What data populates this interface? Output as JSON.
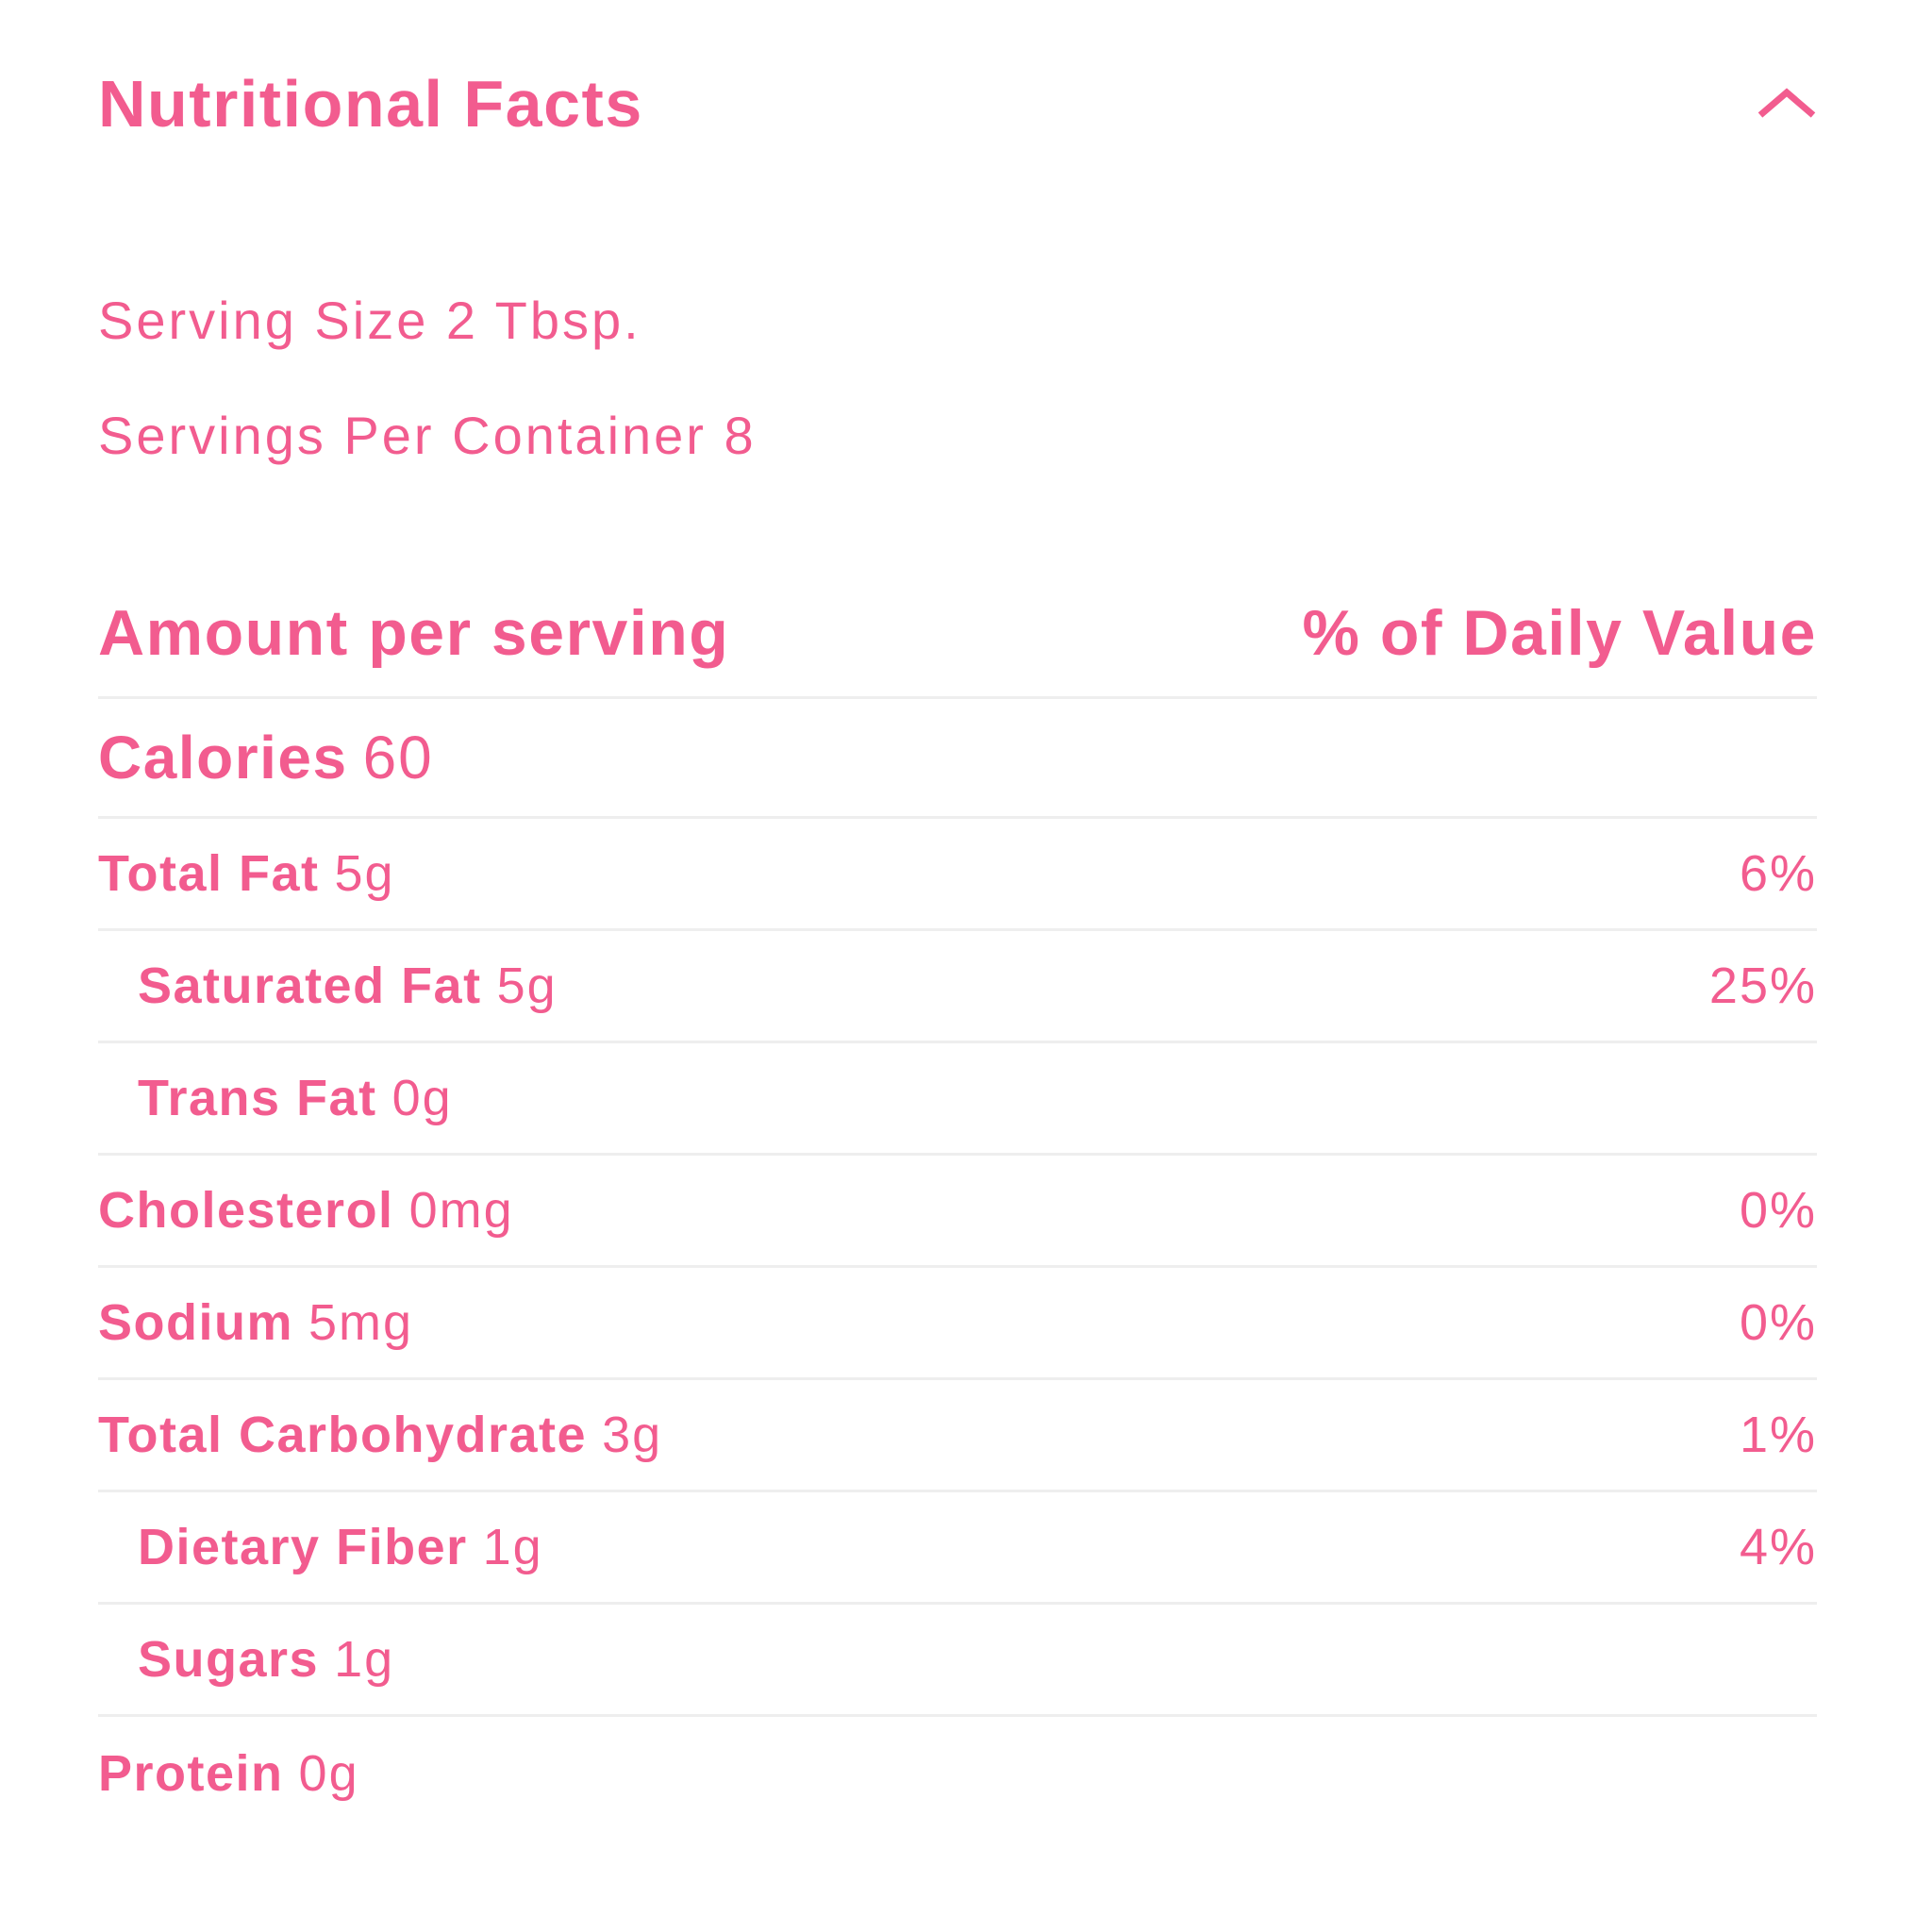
{
  "colors": {
    "accent": "#F25C8F",
    "divider": "#EEEEEE",
    "background": "#FFFFFF"
  },
  "accordion": {
    "title": "Nutritional Facts",
    "toggle_icon": "chevron-up-icon"
  },
  "serving_info": {
    "serving_size": "Serving Size 2 Tbsp.",
    "servings_per_container": "Servings Per Container 8"
  },
  "table": {
    "header": {
      "amount": "Amount per serving",
      "daily_value": "% of Daily Value"
    },
    "calories": {
      "label": "Calories",
      "value": "60"
    },
    "nutrients": [
      {
        "label": "Total Fat",
        "value": "5g",
        "daily_value": "6%",
        "indent": false
      },
      {
        "label": "Saturated Fat",
        "value": "5g",
        "daily_value": "25%",
        "indent": true
      },
      {
        "label": "Trans Fat",
        "value": "0g",
        "daily_value": "",
        "indent": true
      },
      {
        "label": "Cholesterol",
        "value": "0mg",
        "daily_value": "0%",
        "indent": false
      },
      {
        "label": "Sodium",
        "value": "5mg",
        "daily_value": "0%",
        "indent": false
      },
      {
        "label": "Total Carbohydrate",
        "value": "3g",
        "daily_value": "1%",
        "indent": false
      },
      {
        "label": "Dietary Fiber",
        "value": "1g",
        "daily_value": "4%",
        "indent": true
      },
      {
        "label": "Sugars",
        "value": "1g",
        "daily_value": "",
        "indent": true
      },
      {
        "label": "Protein",
        "value": "0g",
        "daily_value": "",
        "indent": false
      }
    ]
  }
}
